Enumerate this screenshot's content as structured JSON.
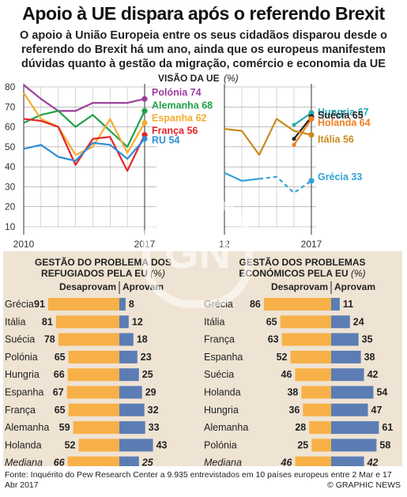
{
  "title": "Apoio à UE dispara após o referendo Brexit",
  "subtitle": "O apoio à União Europeia entre os seus cidadãos disparou desde o referendo do Brexit há um ano, ainda que os europeus manifestem dúvidas quanto à gestão da migração, comércio e economia da UE",
  "colors": {
    "panel_bg": "#efe3d3",
    "refuse": "#f7b148",
    "approve": "#5b7db4",
    "grid": "#999999",
    "Polónia": "#9c3d9e",
    "Alemanha": "#22a04b",
    "Espanha": "#f4ad2e",
    "França": "#e3262b",
    "RU": "#2f8fd4",
    "Hungria": "#2aaab2",
    "Suécia": "#222222",
    "Holanda": "#ef7d1f",
    "Itália": "#c98a1e",
    "Grécia": "#33a3d8"
  },
  "chart_data": [
    {
      "type": "line",
      "title": "VISÃO DA UE (%)",
      "ylim": [
        10,
        80
      ],
      "yticks": [
        "10",
        "20",
        "30",
        "40",
        "50",
        "60",
        "70",
        "80"
      ],
      "grid": true,
      "panels": [
        {
          "xlabels": [
            "2010",
            "2017"
          ],
          "x": [
            2010,
            2011,
            2012,
            2013,
            2014,
            2015,
            2016,
            2017
          ],
          "series": [
            {
              "name": "Polónia",
              "value_label": "74",
              "values": [
                81,
                74,
                68,
                68,
                72,
                72,
                72,
                74
              ]
            },
            {
              "name": "Alemanha",
              "value_label": "68",
              "values": [
                62,
                66,
                68,
                60,
                66,
                58,
                50,
                68
              ]
            },
            {
              "name": "Espanha",
              "value_label": "62",
              "values": [
                77,
                64,
                60,
                46,
                50,
                64,
                47,
                62
              ]
            },
            {
              "name": "França",
              "value_label": "56",
              "values": [
                64,
                63,
                60,
                41,
                54,
                55,
                38,
                56
              ]
            },
            {
              "name": "RU",
              "value_label": "54",
              "values": [
                49,
                51,
                45,
                43,
                52,
                51,
                44,
                54
              ]
            }
          ]
        },
        {
          "xlabels": [
            "12",
            "2017"
          ],
          "x": [
            2012,
            2013,
            2014,
            2015,
            2016,
            2017
          ],
          "series": [
            {
              "name": "Hungria",
              "value_label": "67",
              "values": [
                null,
                null,
                null,
                null,
                61,
                67
              ]
            },
            {
              "name": "Suécia",
              "value_label": "65",
              "values": [
                null,
                null,
                null,
                null,
                54,
                65
              ]
            },
            {
              "name": "Holanda",
              "value_label": "64",
              "values": [
                null,
                null,
                null,
                null,
                51,
                64
              ]
            },
            {
              "name": "Itália",
              "value_label": "56",
              "values": [
                59,
                58,
                46,
                64,
                58,
                56
              ]
            },
            {
              "name": "Grécia",
              "value_label": "33",
              "values": [
                37,
                33,
                34,
                35,
                27,
                33
              ]
            }
          ]
        }
      ]
    },
    {
      "type": "bar",
      "title": "GESTÃO DO PROBLEMA DOS REFUGIADOS PELA EU (%)",
      "title_lines": [
        "GESTÃO DO PROBLEMA DOS",
        "REFUGIADOS PELA EU"
      ],
      "unit": "(%)",
      "legend": [
        "Desaprovam",
        "Aprovam"
      ],
      "categories": [
        "Grécia",
        "Itália",
        "Suécia",
        "Polónia",
        "Hungria",
        "Espanha",
        "França",
        "Alemanha",
        "Holanda",
        "Mediana"
      ],
      "series": [
        {
          "name": "Desaprovam",
          "values": [
            91,
            81,
            78,
            65,
            66,
            67,
            65,
            59,
            52,
            66
          ]
        },
        {
          "name": "Aprovam",
          "values": [
            8,
            12,
            18,
            23,
            25,
            29,
            32,
            33,
            43,
            25
          ]
        }
      ]
    },
    {
      "type": "bar",
      "title": "GESTÃO DOS PROBLEMAS ECONÓMICOS PELA EU (%)",
      "title_lines": [
        "GESTÃO DOS PROBLEMAS",
        "ECONÓMICOS PELA EU"
      ],
      "unit": "(%)",
      "legend": [
        "Desaprovam",
        "Aprovam"
      ],
      "categories": [
        "Grécia",
        "Itália",
        "França",
        "Espanha",
        "Suécia",
        "Holanda",
        "Hungria",
        "Alemanha",
        "Polónia",
        "Mediana"
      ],
      "series": [
        {
          "name": "Desaprovam",
          "values": [
            86,
            65,
            63,
            52,
            46,
            38,
            36,
            28,
            25,
            46
          ]
        },
        {
          "name": "Aprovam",
          "values": [
            11,
            24,
            35,
            38,
            42,
            54,
            47,
            61,
            58,
            42
          ]
        }
      ]
    }
  ],
  "footer": "Fonte: Inquérito do Pew Research Center a 9.935 entrevistados em 10 países europeus entre 2 Mar e 17 Abr 2017",
  "credit": "© GRAPHIC NEWS"
}
